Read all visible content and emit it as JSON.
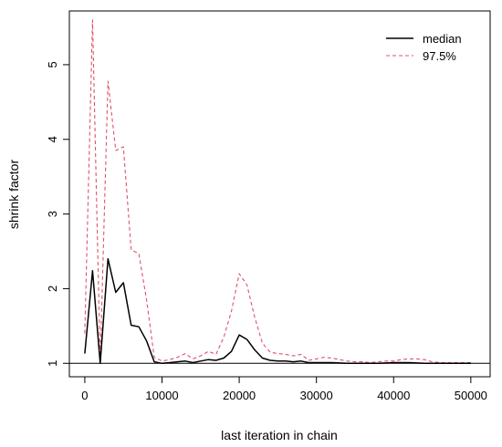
{
  "chart_data": {
    "type": "line",
    "title": "",
    "xlabel": "last iteration in chain",
    "ylabel": "shrink factor",
    "xlim": [
      -2000,
      52500
    ],
    "ylim": [
      0.82,
      5.72
    ],
    "x_ticks": [
      0,
      10000,
      20000,
      30000,
      40000,
      50000
    ],
    "x_tick_labels": [
      "0",
      "10000",
      "20000",
      "30000",
      "40000",
      "50000"
    ],
    "y_ticks": [
      1,
      2,
      3,
      4,
      5
    ],
    "y_tick_labels": [
      "1",
      "2",
      "3",
      "4",
      "5"
    ],
    "reference_line": 1,
    "grid": false,
    "legend_position": "top-right",
    "series": [
      {
        "name": "median",
        "color": "#000000",
        "dash": "solid",
        "x": [
          0,
          1000,
          2000,
          3000,
          4000,
          5000,
          6000,
          7000,
          8000,
          9000,
          10000,
          11000,
          12000,
          13000,
          14000,
          15000,
          16000,
          17000,
          18000,
          19000,
          20000,
          21000,
          22000,
          23000,
          24000,
          25000,
          26000,
          27000,
          28000,
          29000,
          30000,
          32000,
          34000,
          36000,
          38000,
          40000,
          42000,
          44000,
          46000,
          48000,
          50000
        ],
        "values": [
          1.13,
          2.24,
          1.0,
          2.4,
          1.95,
          2.08,
          1.51,
          1.49,
          1.3,
          1.02,
          1.0,
          1.01,
          1.02,
          1.03,
          1.01,
          1.03,
          1.05,
          1.04,
          1.07,
          1.16,
          1.38,
          1.32,
          1.18,
          1.07,
          1.04,
          1.03,
          1.03,
          1.02,
          1.03,
          1.01,
          1.01,
          1.01,
          1.0,
          1.0,
          1.0,
          1.01,
          1.01,
          1.0,
          1.0,
          1.0,
          1.0
        ]
      },
      {
        "name": "97.5%",
        "color": "#df536b",
        "dash": "dashed",
        "x": [
          0,
          1000,
          2000,
          3000,
          4000,
          5000,
          6000,
          7000,
          8000,
          9000,
          10000,
          11000,
          12000,
          13000,
          14000,
          15000,
          16000,
          17000,
          18000,
          19000,
          20000,
          21000,
          22000,
          23000,
          24000,
          25000,
          26000,
          27000,
          28000,
          29000,
          30000,
          31000,
          32000,
          33000,
          34000,
          35000,
          36000,
          37000,
          38000,
          39000,
          40000,
          41000,
          42000,
          43000,
          44000,
          45000,
          46000,
          48000,
          50000
        ],
        "values": [
          1.4,
          5.6,
          1.0,
          4.78,
          3.85,
          3.9,
          2.52,
          2.47,
          1.85,
          1.08,
          1.03,
          1.05,
          1.08,
          1.13,
          1.06,
          1.1,
          1.16,
          1.12,
          1.35,
          1.7,
          2.2,
          2.05,
          1.62,
          1.27,
          1.15,
          1.13,
          1.12,
          1.1,
          1.12,
          1.04,
          1.06,
          1.08,
          1.07,
          1.05,
          1.03,
          1.02,
          1.02,
          1.01,
          1.02,
          1.03,
          1.03,
          1.05,
          1.06,
          1.06,
          1.05,
          1.02,
          1.01,
          1.01,
          1.01
        ]
      }
    ]
  }
}
